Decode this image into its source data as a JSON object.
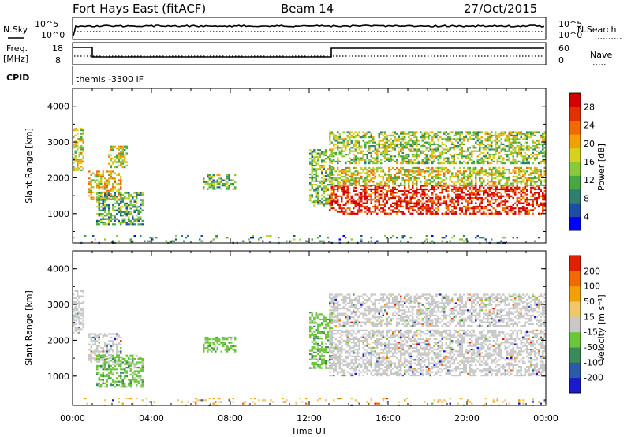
{
  "header": {
    "station": "Fort Hays East (fitACF)",
    "beam": "Beam 14",
    "date": "27/Oct/2015"
  },
  "summary": {
    "left_labels": {
      "nsky": "N.Sky",
      "freq": "Freq.",
      "freq_unit": "[MHz]",
      "cpid": "CPID"
    },
    "right_labels": {
      "nsearch": "N.Search",
      "nave": "Nave"
    },
    "noise_left_ticks": [
      "10^5",
      "10^0"
    ],
    "noise_right_ticks": [
      "10^5",
      "10^0"
    ],
    "freq_ticks": [
      "18",
      "8"
    ],
    "nave_ticks": [
      "60",
      "0"
    ],
    "cpid_text": "themis -3300 IF"
  },
  "chart_data": [
    {
      "type": "heatmap",
      "panel": "power",
      "ylabel": "Slant Range [km]",
      "yticks": [
        "4000",
        "3000",
        "2000",
        "1000"
      ],
      "ylim": [
        180,
        4500
      ],
      "xlim_hours": [
        0,
        24
      ],
      "colorbar": {
        "label": "Power [dB]",
        "ticks": [
          "28",
          "24",
          "20",
          "16",
          "12",
          "8",
          "4"
        ],
        "colors": [
          "#0000ff",
          "#1e4da6",
          "#2e7f6f",
          "#45a840",
          "#8ac83c",
          "#d6d21e",
          "#f5a000",
          "#f06a00",
          "#e33000",
          "#d40000"
        ]
      },
      "echo_regions": [
        {
          "t0": 0.0,
          "t1": 0.6,
          "r0": 2200,
          "r1": 3400,
          "level": 0.55
        },
        {
          "t0": 0.8,
          "t1": 2.5,
          "r0": 1400,
          "r1": 2200,
          "level": 0.6
        },
        {
          "t0": 1.2,
          "t1": 3.6,
          "r0": 700,
          "r1": 1600,
          "level": 0.35
        },
        {
          "t0": 1.8,
          "t1": 2.8,
          "r0": 2300,
          "r1": 2900,
          "level": 0.5
        },
        {
          "t0": 6.6,
          "t1": 8.3,
          "r0": 1700,
          "r1": 2100,
          "level": 0.4
        },
        {
          "t0": 12.0,
          "t1": 13.2,
          "r0": 1200,
          "r1": 2800,
          "level": 0.4
        },
        {
          "t0": 13.0,
          "t1": 24.0,
          "r0": 1000,
          "r1": 1800,
          "level": 0.9
        },
        {
          "t0": 13.0,
          "t1": 24.0,
          "r0": 1800,
          "r1": 2300,
          "level": 0.55
        },
        {
          "t0": 13.0,
          "t1": 24.0,
          "r0": 2400,
          "r1": 3300,
          "level": 0.45
        },
        {
          "t0": 0.0,
          "t1": 24.0,
          "r0": 180,
          "r1": 400,
          "level": 0.3
        }
      ]
    },
    {
      "type": "heatmap",
      "panel": "velocity",
      "ylabel": "Slant Range [km]",
      "yticks": [
        "4000",
        "3000",
        "2000",
        "1000"
      ],
      "ylim": [
        180,
        4500
      ],
      "xlim_hours": [
        0,
        24
      ],
      "xticks": [
        "00:00",
        "04:00",
        "08:00",
        "12:00",
        "16:00",
        "20:00",
        "00:00"
      ],
      "xlabel": "Time UT",
      "colorbar": {
        "label": "Velocity [m s⁻¹]",
        "ticks": [
          "200",
          "100",
          "50",
          "15",
          "-15",
          "-50",
          "-100",
          "-200"
        ],
        "colors": [
          "#1a1acc",
          "#2b5aa8",
          "#3a8a5a",
          "#6cc63a",
          "#c8c8c8",
          "#f0c86a",
          "#f4a000",
          "#f06a00",
          "#e02000"
        ]
      },
      "echo_regions": [
        {
          "t0": 0.0,
          "t1": 0.6,
          "r0": 2200,
          "r1": 3400,
          "kind": "ground"
        },
        {
          "t0": 0.8,
          "t1": 2.5,
          "r0": 1400,
          "r1": 2200,
          "kind": "ground"
        },
        {
          "t0": 1.2,
          "t1": 3.6,
          "r0": 700,
          "r1": 1600,
          "kind": "green"
        },
        {
          "t0": 6.6,
          "t1": 8.3,
          "r0": 1700,
          "r1": 2100,
          "kind": "green"
        },
        {
          "t0": 12.0,
          "t1": 13.2,
          "r0": 1200,
          "r1": 2800,
          "kind": "green"
        },
        {
          "t0": 13.0,
          "t1": 24.0,
          "r0": 1000,
          "r1": 2300,
          "kind": "ground"
        },
        {
          "t0": 13.0,
          "t1": 24.0,
          "r0": 2400,
          "r1": 3300,
          "kind": "ground"
        },
        {
          "t0": 0.0,
          "t1": 24.0,
          "r0": 180,
          "r1": 400,
          "kind": "orange"
        }
      ]
    }
  ]
}
